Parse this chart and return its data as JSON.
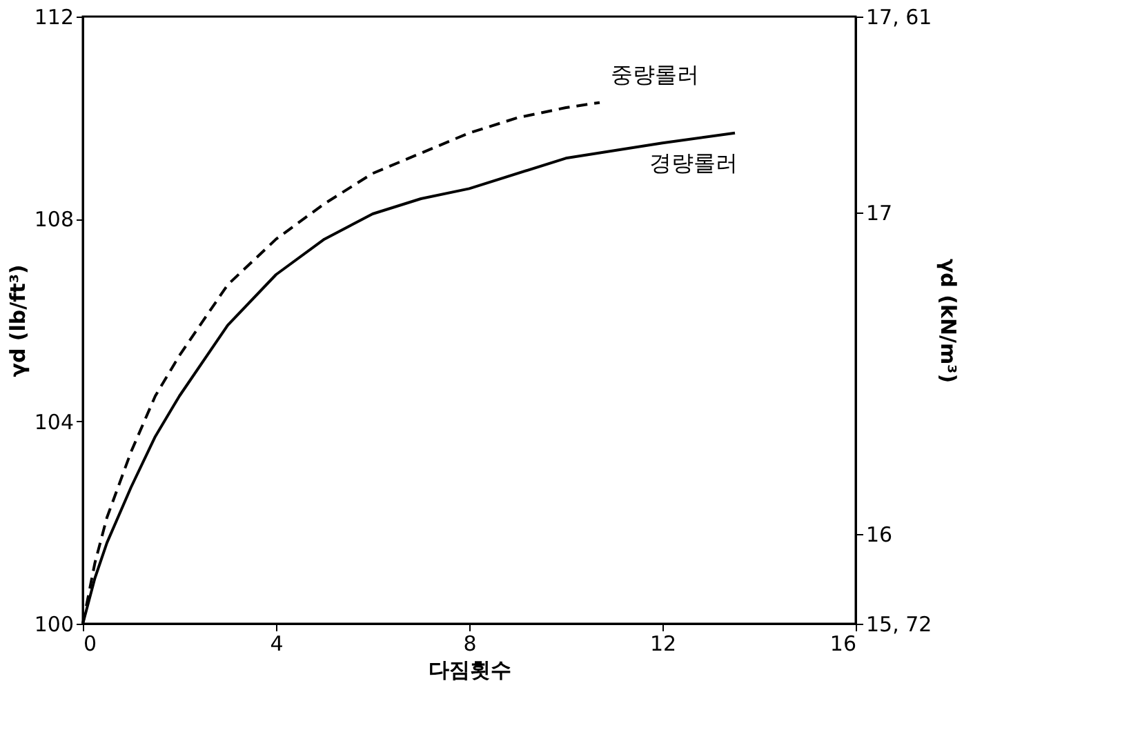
{
  "chart_data": {
    "type": "line",
    "xlabel": "다짐횟수",
    "ylabel": "γd (lb/ft³)",
    "y2label": "γd (kN/m³)",
    "series": [
      {
        "name": "중량롤러",
        "color": "#000000",
        "line_style": "dashed",
        "x": [
          0,
          0.25,
          0.5,
          1,
          1.5,
          2,
          3,
          4,
          5,
          6,
          7,
          8,
          9,
          10,
          10.7
        ],
        "values": [
          100,
          101.2,
          102.1,
          103.4,
          104.5,
          105.3,
          106.7,
          107.6,
          108.3,
          108.9,
          109.3,
          109.7,
          110.0,
          110.2,
          110.3
        ]
      },
      {
        "name": "경량롤러",
        "color": "#000000",
        "line_style": "solid",
        "x": [
          0,
          0.25,
          0.5,
          1,
          1.5,
          2,
          3,
          4,
          5,
          6,
          7,
          8,
          10,
          12,
          13.5
        ],
        "values": [
          100,
          100.9,
          101.6,
          102.7,
          103.7,
          104.5,
          105.9,
          106.9,
          107.6,
          108.1,
          108.4,
          108.6,
          109.2,
          109.5,
          109.7
        ]
      }
    ],
    "xlim": [
      0,
      16
    ],
    "xticks": [
      0,
      4,
      8,
      12,
      16
    ],
    "ylim": [
      100,
      112
    ],
    "yticks": [
      100,
      104,
      108,
      112
    ],
    "y2lim": [
      15.72,
      17.61
    ],
    "y2ticks": [
      {
        "value": 15.72,
        "label": "15, 72"
      },
      16,
      17,
      {
        "value": 17.61,
        "label": "17, 61"
      }
    ],
    "grid": false,
    "legend": false,
    "marker": "none"
  }
}
